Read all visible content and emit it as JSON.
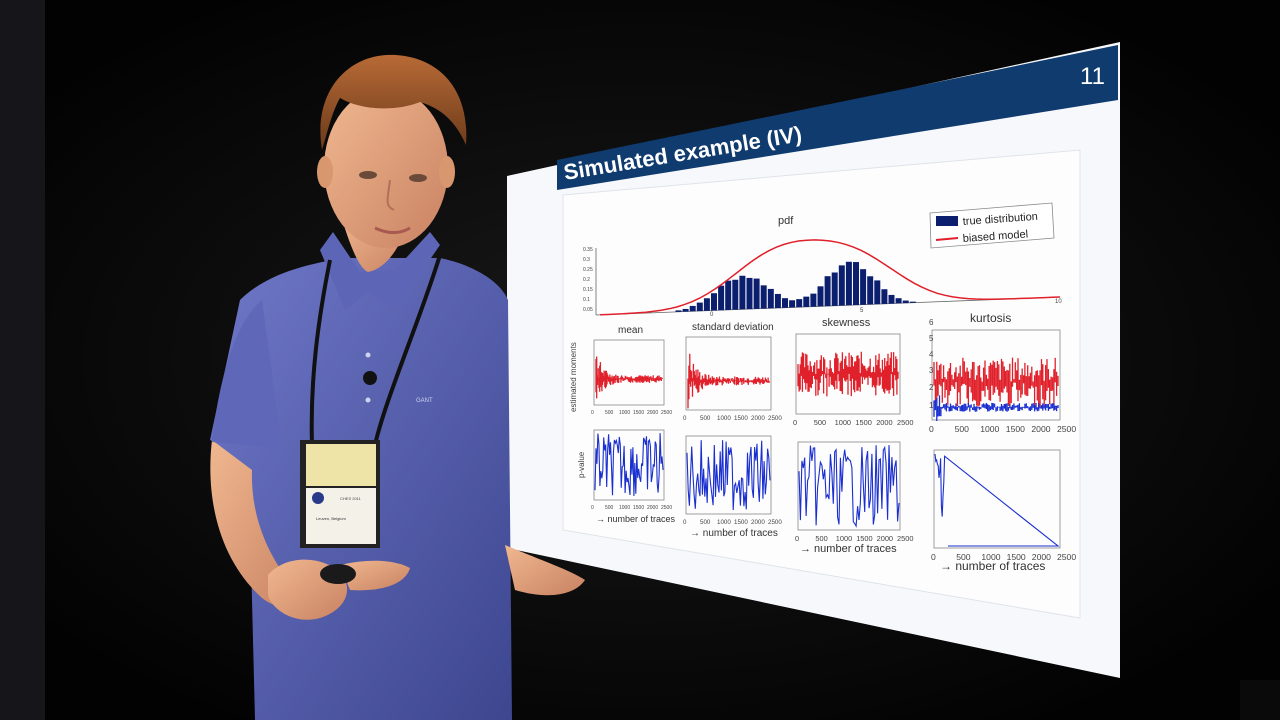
{
  "slide": {
    "number": "11",
    "title": "Simulated example (IV)",
    "header_color": "#0f3b6e"
  },
  "figure": {
    "pdf": {
      "title": "pdf",
      "legend": [
        "true distribution",
        "biased model"
      ],
      "y_ticks": [
        "0.05",
        "0.1",
        "0.15",
        "0.2",
        "0.25",
        "0.3",
        "0.35"
      ],
      "x_ticks": [
        "0",
        "5",
        "10"
      ],
      "histogram_color": "#0b1f6e",
      "model_color": "#e0202a"
    },
    "moments": {
      "titles": [
        "mean",
        "standard deviation",
        "skewness",
        "kurtosis"
      ],
      "ylabel": "estimated moments",
      "x_ticks": [
        "0",
        "500",
        "1000",
        "1500",
        "2000",
        "2500"
      ],
      "kurtosis_y_ticks": [
        "1",
        "2",
        "3",
        "4",
        "5",
        "6"
      ]
    },
    "pvalues": {
      "ylabel": "p-value",
      "xlabel": "→ number of traces",
      "x_ticks": [
        "0",
        "500",
        "1000",
        "1500",
        "2000",
        "2500"
      ]
    }
  },
  "badge": {
    "line1": "Leuven, Belgium",
    "line2": "CHES 2011"
  },
  "shirt_logo": "GANT"
}
